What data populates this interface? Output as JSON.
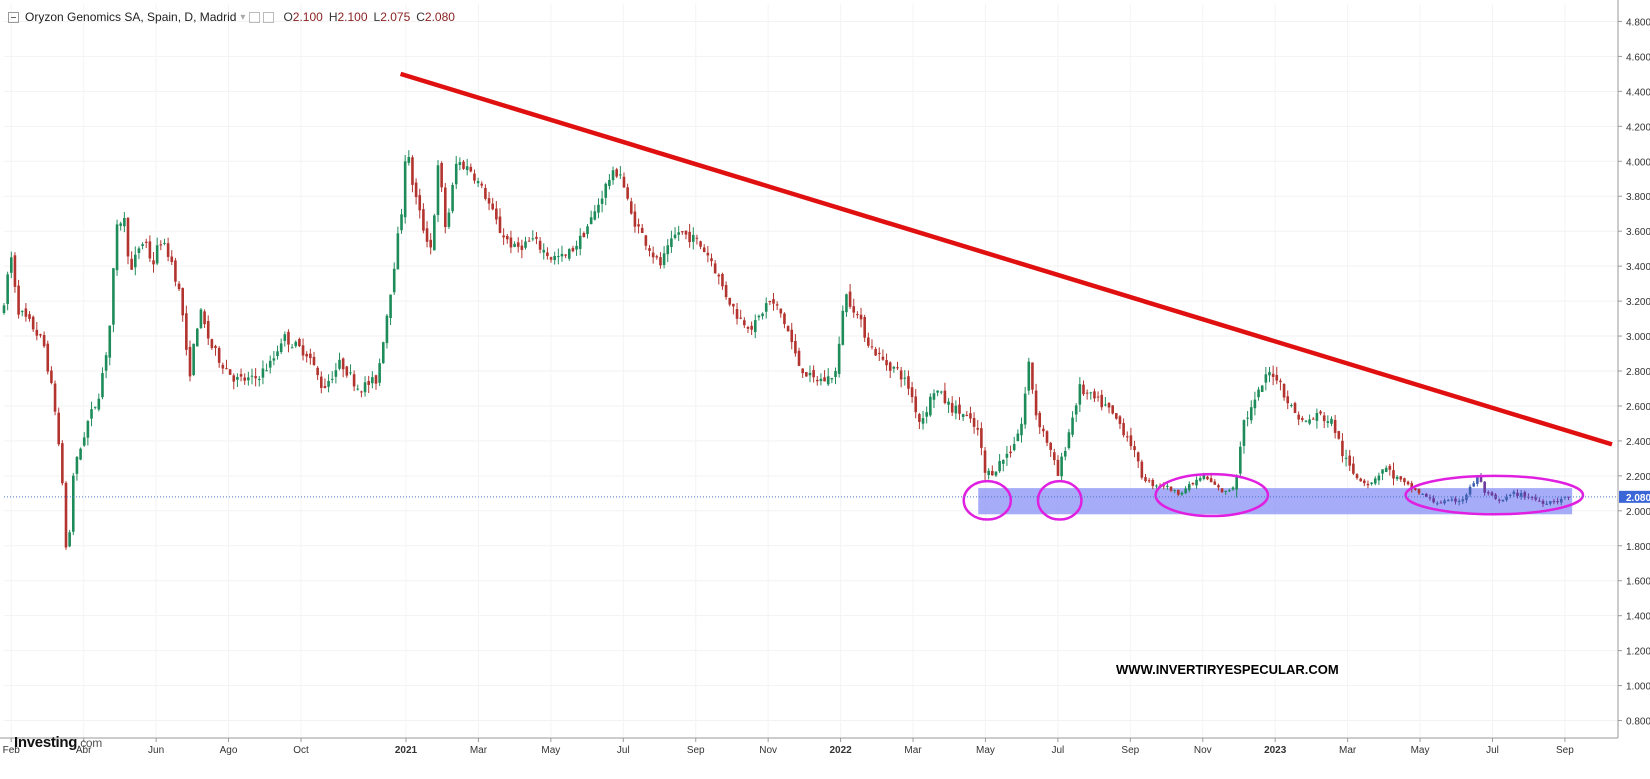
{
  "header": {
    "symbol": "Oryzon Genomics SA, Spain, D, Madrid",
    "open_label": "O",
    "open": "2.100",
    "high_label": "H",
    "high": "2.100",
    "low_label": "L",
    "low": "2.075",
    "close_label": "C",
    "close": "2.080"
  },
  "brand": {
    "name": "Investing",
    "suffix": ".com"
  },
  "watermark": "WWW.INVERTIRYESPECULAR.COM",
  "colors": {
    "up": "#1e8c5a",
    "down": "#b3332e",
    "trendline": "#e01010",
    "zone": "#8890f5",
    "ellipse": "#e020e0",
    "price_tag": "#3a66d8"
  },
  "chart_data": {
    "type": "candlestick",
    "title": "Oryzon Genomics SA, Spain, D, Madrid",
    "xlabel": "",
    "ylabel": "",
    "ylim": [
      0.7,
      4.9
    ],
    "y_ticks": [
      "0.800",
      "1.000",
      "1.200",
      "1.400",
      "1.600",
      "1.800",
      "2.000",
      "2.200",
      "2.400",
      "2.600",
      "2.800",
      "3.000",
      "3.200",
      "3.400",
      "3.600",
      "3.800",
      "4.000",
      "4.200",
      "4.400",
      "4.600",
      "4.800"
    ],
    "x_ticks": [
      {
        "label": "Feb",
        "t": 0.1
      },
      {
        "label": "Abr",
        "t": 2.1
      },
      {
        "label": "Jun",
        "t": 4.1
      },
      {
        "label": "Ago",
        "t": 6.1
      },
      {
        "label": "Oct",
        "t": 8.1
      },
      {
        "label": "2021",
        "t": 11.0
      },
      {
        "label": "Mar",
        "t": 13.0
      },
      {
        "label": "May",
        "t": 15.0
      },
      {
        "label": "Jul",
        "t": 17.0
      },
      {
        "label": "Sep",
        "t": 19.0
      },
      {
        "label": "Nov",
        "t": 21.0
      },
      {
        "label": "2022",
        "t": 23.0
      },
      {
        "label": "Mar",
        "t": 25.0
      },
      {
        "label": "May",
        "t": 27.0
      },
      {
        "label": "Jul",
        "t": 29.0
      },
      {
        "label": "Sep",
        "t": 31.0
      },
      {
        "label": "Nov",
        "t": 33.0
      },
      {
        "label": "2023",
        "t": 35.0
      },
      {
        "label": "Mar",
        "t": 37.0
      },
      {
        "label": "May",
        "t": 39.0
      },
      {
        "label": "Jul",
        "t": 41.0
      },
      {
        "label": "Sep",
        "t": 43.0
      }
    ],
    "x_range": [
      -0.1,
      44.3
    ],
    "price_path": [
      [
        -0.1,
        3.15
      ],
      [
        0.0,
        3.35
      ],
      [
        0.1,
        3.45
      ],
      [
        0.3,
        3.15
      ],
      [
        0.7,
        3.05
      ],
      [
        1.0,
        2.95
      ],
      [
        1.3,
        2.6
      ],
      [
        1.5,
        2.2
      ],
      [
        1.65,
        1.65
      ],
      [
        1.8,
        2.2
      ],
      [
        2.0,
        2.35
      ],
      [
        2.2,
        2.5
      ],
      [
        2.5,
        2.65
      ],
      [
        2.8,
        3.0
      ],
      [
        3.0,
        3.6
      ],
      [
        3.2,
        3.7
      ],
      [
        3.4,
        3.35
      ],
      [
        3.6,
        3.5
      ],
      [
        3.8,
        3.55
      ],
      [
        4.0,
        3.4
      ],
      [
        4.2,
        3.55
      ],
      [
        4.5,
        3.45
      ],
      [
        4.8,
        3.2
      ],
      [
        5.0,
        2.75
      ],
      [
        5.3,
        3.15
      ],
      [
        5.6,
        2.95
      ],
      [
        5.9,
        2.85
      ],
      [
        6.3,
        2.75
      ],
      [
        6.8,
        2.75
      ],
      [
        7.3,
        2.85
      ],
      [
        7.6,
        3.0
      ],
      [
        7.9,
        2.95
      ],
      [
        8.3,
        2.9
      ],
      [
        8.7,
        2.7
      ],
      [
        9.2,
        2.85
      ],
      [
        9.7,
        2.7
      ],
      [
        10.2,
        2.75
      ],
      [
        10.6,
        3.3
      ],
      [
        10.9,
        3.75
      ],
      [
        11.0,
        4.1
      ],
      [
        11.2,
        3.85
      ],
      [
        11.5,
        3.6
      ],
      [
        11.7,
        3.5
      ],
      [
        11.9,
        4.0
      ],
      [
        12.1,
        3.6
      ],
      [
        12.4,
        4.0
      ],
      [
        12.8,
        3.95
      ],
      [
        13.2,
        3.8
      ],
      [
        13.6,
        3.6
      ],
      [
        14.0,
        3.5
      ],
      [
        14.5,
        3.55
      ],
      [
        15.0,
        3.45
      ],
      [
        15.4,
        3.45
      ],
      [
        15.8,
        3.55
      ],
      [
        16.2,
        3.7
      ],
      [
        16.6,
        3.9
      ],
      [
        16.9,
        3.95
      ],
      [
        17.2,
        3.7
      ],
      [
        17.6,
        3.55
      ],
      [
        18.0,
        3.4
      ],
      [
        18.5,
        3.6
      ],
      [
        19.0,
        3.55
      ],
      [
        19.4,
        3.45
      ],
      [
        19.8,
        3.25
      ],
      [
        20.2,
        3.1
      ],
      [
        20.6,
        3.05
      ],
      [
        21.0,
        3.2
      ],
      [
        21.3,
        3.15
      ],
      [
        21.6,
        3.0
      ],
      [
        21.8,
        2.85
      ],
      [
        22.2,
        2.75
      ],
      [
        22.6,
        2.75
      ],
      [
        22.9,
        2.8
      ],
      [
        23.1,
        3.25
      ],
      [
        23.4,
        3.15
      ],
      [
        23.8,
        2.95
      ],
      [
        24.2,
        2.85
      ],
      [
        24.6,
        2.8
      ],
      [
        24.9,
        2.7
      ],
      [
        25.2,
        2.5
      ],
      [
        25.6,
        2.7
      ],
      [
        26.0,
        2.6
      ],
      [
        26.4,
        2.55
      ],
      [
        26.8,
        2.45
      ],
      [
        27.0,
        2.2
      ],
      [
        27.3,
        2.25
      ],
      [
        27.7,
        2.35
      ],
      [
        28.0,
        2.5
      ],
      [
        28.2,
        2.85
      ],
      [
        28.4,
        2.55
      ],
      [
        28.7,
        2.4
      ],
      [
        29.0,
        2.2
      ],
      [
        29.3,
        2.45
      ],
      [
        29.6,
        2.7
      ],
      [
        29.9,
        2.65
      ],
      [
        30.3,
        2.6
      ],
      [
        30.7,
        2.5
      ],
      [
        31.0,
        2.4
      ],
      [
        31.3,
        2.2
      ],
      [
        31.6,
        2.15
      ],
      [
        31.9,
        2.15
      ],
      [
        32.3,
        2.1
      ],
      [
        32.7,
        2.15
      ],
      [
        33.0,
        2.2
      ],
      [
        33.3,
        2.15
      ],
      [
        33.6,
        2.1
      ],
      [
        33.9,
        2.15
      ],
      [
        34.1,
        2.5
      ],
      [
        34.4,
        2.6
      ],
      [
        34.7,
        2.75
      ],
      [
        34.9,
        2.8
      ],
      [
        35.1,
        2.75
      ],
      [
        35.4,
        2.6
      ],
      [
        35.8,
        2.5
      ],
      [
        36.2,
        2.55
      ],
      [
        36.6,
        2.5
      ],
      [
        36.9,
        2.3
      ],
      [
        37.2,
        2.2
      ],
      [
        37.6,
        2.15
      ],
      [
        38.0,
        2.25
      ],
      [
        38.3,
        2.2
      ],
      [
        38.6,
        2.15
      ],
      [
        39.0,
        2.1
      ],
      [
        39.4,
        2.05
      ],
      [
        39.8,
        2.05
      ],
      [
        40.2,
        2.07
      ],
      [
        40.6,
        2.2
      ],
      [
        40.8,
        2.1
      ],
      [
        41.2,
        2.05
      ],
      [
        41.6,
        2.1
      ],
      [
        42.0,
        2.08
      ],
      [
        42.4,
        2.05
      ],
      [
        42.8,
        2.06
      ],
      [
        43.1,
        2.08
      ]
    ],
    "trendline": {
      "from": [
        10.85,
        4.5
      ],
      "to": [
        44.3,
        2.38
      ]
    },
    "support_zone": {
      "from_t": 26.8,
      "to_t": 43.2,
      "low": 1.98,
      "high": 2.13
    },
    "ellipses": [
      {
        "cx_t": 27.05,
        "cy": 2.06,
        "rx_t": 0.65,
        "ry": 0.11
      },
      {
        "cx_t": 29.05,
        "cy": 2.06,
        "rx_t": 0.6,
        "ry": 0.11
      },
      {
        "cx_t": 33.25,
        "cy": 2.09,
        "rx_t": 1.55,
        "ry": 0.12
      },
      {
        "cx_t": 41.05,
        "cy": 2.09,
        "rx_t": 2.45,
        "ry": 0.11
      }
    ],
    "last_price": "2.080",
    "last_price_value": 2.08
  }
}
